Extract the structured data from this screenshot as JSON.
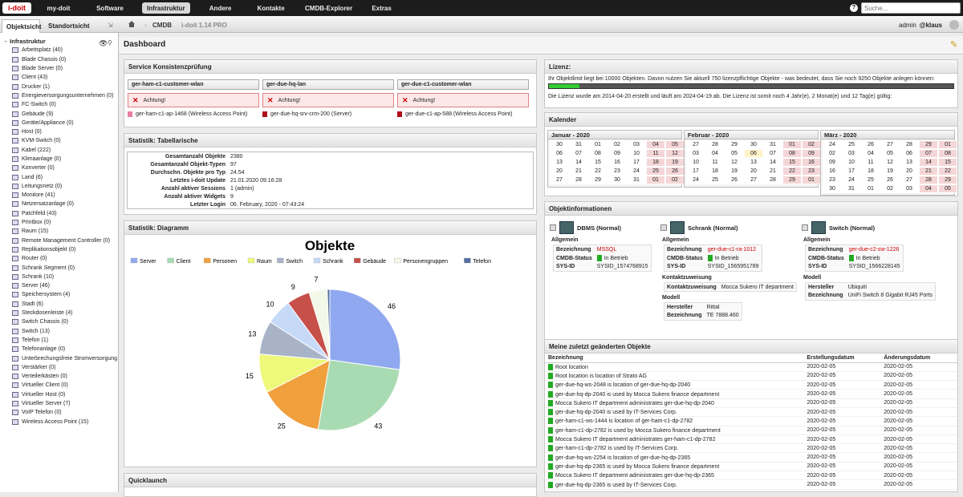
{
  "topbar": {
    "logo": "i-doit",
    "nav": [
      "my-doit",
      "Software",
      "Infrastruktur",
      "Andere",
      "Kontakte",
      "CMDB-Explorer",
      "Extras"
    ],
    "search_placeholder": "Suche..."
  },
  "tabs": {
    "obj": "Objektsicht",
    "loc": "Standortsicht"
  },
  "breadcrumb": {
    "cmdb": "CMDB",
    "version": "i-doit 1.14 PRO"
  },
  "user": {
    "name": "admin",
    "tenant": "@klaus"
  },
  "tree": {
    "root": "Infrastruktur",
    "items": [
      "Arbeitsplatz (40)",
      "Blade Chassis (0)",
      "Blade Server (0)",
      "Client (43)",
      "Drucker (1)",
      "Energieversorgungsunternehmen (0)",
      "FC-Switch (0)",
      "Gebäude (9)",
      "Geräte/Appliance (0)",
      "Host (0)",
      "KVM-Switch (0)",
      "Kabel (222)",
      "Klimaanlage (0)",
      "Konverter (0)",
      "Land (6)",
      "Leitungsnetz (0)",
      "Monitore (41)",
      "Netzersatzanlage (0)",
      "Patchfeld (43)",
      "Printbox (0)",
      "Raum (15)",
      "Remote Management Controller (0)",
      "Replikationsobjekt (0)",
      "Router (0)",
      "Schrank Segment (0)",
      "Schrank (10)",
      "Server (46)",
      "Speichersystem (4)",
      "Stadt (6)",
      "Steckdosenleiste (4)",
      "Switch Chassis (0)",
      "Switch (13)",
      "Telefon (1)",
      "Telefonanlage (0)",
      "Unterbrechungsfreie Stromversorgung",
      "Verstärker (0)",
      "Verteilerkästen (0)",
      "Virtueller Client (0)",
      "Virtueller Host (0)",
      "Virtueller Server (7)",
      "VoIP Telefon (0)",
      "Wireless Access Point (15)"
    ]
  },
  "dashboard": {
    "title": "Dashboard"
  },
  "consistency": {
    "title": "Service Konsistenzprüfung",
    "columns": [
      {
        "name": "ger-ham-c1-customer-wlan",
        "alert": "Achtung!",
        "device": "ger-ham-c1-ap-1468 (Wireless Access Point)",
        "color": "#e87fa0"
      },
      {
        "name": "ger-due-hq-lan",
        "alert": "Achtung!",
        "device": "ger-due-hq-srv-crm-200 (Server)",
        "color": "#b0101a"
      },
      {
        "name": "ger-due-c1-customer-wlan",
        "alert": "Achtung!",
        "device": "ger-due-c1-ap-588 (Wireless Access Point)",
        "color": "#b0101a"
      }
    ]
  },
  "stats": {
    "title": "Statistik: Tabellarische",
    "rows": [
      [
        "Gesamtanzahl Objekte",
        "2380"
      ],
      [
        "Gesamtanzahl Objekt-Typen",
        "97"
      ],
      [
        "Durchschn. Objekte pro Typ",
        "24.54"
      ],
      [
        "Letztes i-doit Update",
        "21.01.2020 09:16:28"
      ],
      [
        "Anzahl aktiver Sessions",
        "1 (admin)"
      ],
      [
        "Anzahl aktiver Widgets",
        "9"
      ],
      [
        "Letzter Login",
        "06. February, 2020 - 07:43:24"
      ]
    ]
  },
  "diagram": {
    "title": "Statistik: Diagramm"
  },
  "chart_data": {
    "type": "pie",
    "title": "Objekte",
    "legend_position": "top",
    "categories": [
      "Server",
      "Client",
      "Personen",
      "Raum",
      "Switch",
      "Schrank",
      "Gebäude",
      "Personengruppen",
      "Telefon"
    ],
    "values": [
      46,
      43,
      25,
      15,
      13,
      10,
      9,
      7,
      1
    ],
    "colors": [
      "#8fa8ef",
      "#a9dbb2",
      "#f0a03c",
      "#eef87a",
      "#a8b3c8",
      "#c6daf8",
      "#c7504a",
      "#f4f8e8",
      "#5470a0"
    ],
    "shown_labels": [
      "46",
      "43",
      "25",
      "15",
      "13",
      "10",
      "9",
      "7",
      ""
    ]
  },
  "quicklaunch": {
    "title": "Quicklaunch"
  },
  "license": {
    "title": "Lizenz:",
    "line1": "Ihr Objektlimit liegt bei 10000 Objekten. Davon nutzen Sie aktuell 750 lizenzpflichtige Objekte - was bedeutet, dass Sie noch 9250 Objekte anlegen können:",
    "used_fraction": 0.075,
    "line2": "Die Lizenz wurde am 2014-04-20 erstellt und läuft am 2024-04-19 ab. Die Lizenz ist somit noch 4 Jahr(e), 2 Monat(e) und 12 Tag(e) gültig:"
  },
  "calendar": {
    "title": "Kalender",
    "months": [
      {
        "name": "Januar - 2020",
        "days": [
          "30",
          "31",
          "01",
          "02",
          "03",
          "04",
          "05",
          "06",
          "07",
          "08",
          "09",
          "10",
          "11",
          "12",
          "13",
          "14",
          "15",
          "16",
          "17",
          "18",
          "19",
          "20",
          "21",
          "22",
          "23",
          "24",
          "25",
          "26",
          "27",
          "28",
          "29",
          "30",
          "31",
          "01",
          "02"
        ]
      },
      {
        "name": "Februar - 2020",
        "days": [
          "27",
          "28",
          "29",
          "30",
          "31",
          "01",
          "02",
          "03",
          "04",
          "05",
          "06",
          "07",
          "08",
          "09",
          "10",
          "11",
          "12",
          "13",
          "14",
          "15",
          "16",
          "17",
          "18",
          "19",
          "20",
          "21",
          "22",
          "23",
          "24",
          "25",
          "26",
          "27",
          "28",
          "29",
          "01"
        ]
      },
      {
        "name": "März - 2020",
        "days": [
          "24",
          "25",
          "26",
          "27",
          "28",
          "29",
          "01",
          "02",
          "03",
          "04",
          "05",
          "06",
          "07",
          "08",
          "09",
          "10",
          "11",
          "12",
          "13",
          "14",
          "15",
          "16",
          "17",
          "18",
          "19",
          "20",
          "21",
          "22",
          "23",
          "24",
          "25",
          "26",
          "27",
          "28",
          "29",
          "30",
          "31",
          "01",
          "02",
          "03",
          "04",
          "05"
        ]
      }
    ],
    "today": {
      "month": 1,
      "day": "06"
    }
  },
  "objinfo": {
    "title": "Objektinformationen",
    "cards": [
      {
        "title": "DBMS (Normal)",
        "section": "Allgemein",
        "rows": [
          [
            "Bezeichnung",
            "MSSQL"
          ],
          [
            "CMDB-Status",
            "In Betrieb"
          ],
          [
            "SYS-ID",
            "SYSID_1574768915"
          ]
        ]
      },
      {
        "title": "Schrank (Normal)",
        "section": "Allgemein",
        "rows": [
          [
            "Bezeichnung",
            "ger-due-c1-ra-1012"
          ],
          [
            "CMDB-Status",
            "In Betrieb"
          ],
          [
            "SYS-ID",
            "SYSID_1565951789"
          ]
        ],
        "section2": "Kontaktzuweisung",
        "rows2": [
          [
            "Kontaktzuweisung",
            "Mocca Sukero IT department"
          ]
        ],
        "section3": "Modell",
        "rows3": [
          [
            "Hersteller",
            "Rittal"
          ],
          [
            "Bezeichnung",
            "TE 7888.460"
          ]
        ]
      },
      {
        "title": "Switch (Normal)",
        "section": "Allgemein",
        "rows": [
          [
            "Bezeichnung",
            "ger-due-c2-sw-1226"
          ],
          [
            "CMDB-Status",
            "In Betrieb"
          ],
          [
            "SYS-ID",
            "SYSID_1566228145"
          ]
        ],
        "section3": "Modell",
        "rows3": [
          [
            "Hersteller",
            "Ubiquiti"
          ],
          [
            "Bezeichnung",
            "UniFi Switch 8 Gigabit RJ45 Ports"
          ]
        ]
      }
    ]
  },
  "recent": {
    "title": "Meine zuletzt geänderten Objekte",
    "headers": [
      "Bezeichnung",
      "Erstellungsdatum",
      "Änderungsdatum"
    ],
    "rows": [
      [
        "Root location",
        "2020-02-05",
        "2020-02-05"
      ],
      [
        "Root location is location of Strato AG",
        "2020-02-05",
        "2020-02-05"
      ],
      [
        "ger-due-hq-ws-2048 is location of ger-due-hq-dp-2040",
        "2020-02-05",
        "2020-02-05"
      ],
      [
        "ger-due-hq-dp-2040 is used by Mocca Sukero finance department",
        "2020-02-05",
        "2020-02-05"
      ],
      [
        "Mocca Sukero IT department administrates ger-due-hq-dp-2040",
        "2020-02-05",
        "2020-02-05"
      ],
      [
        "ger-due-hq-dp-2040 is used by IT-Services Corp.",
        "2020-02-05",
        "2020-02-05"
      ],
      [
        "ger-ham-c1-ws-1444 is location of ger-ham-c1-dp-2782",
        "2020-02-05",
        "2020-02-05"
      ],
      [
        "ger-ham-c1-dp-2782 is used by Mocca Sukero finance department",
        "2020-02-05",
        "2020-02-05"
      ],
      [
        "Mocca Sukero IT department administrates ger-ham-c1-dp-2782",
        "2020-02-05",
        "2020-02-05"
      ],
      [
        "ger-ham-c1-dp-2782 is used by IT-Services Corp.",
        "2020-02-05",
        "2020-02-05"
      ],
      [
        "ger-due-hq-ws-2254 is location of ger-due-hq-dp-2365",
        "2020-02-05",
        "2020-02-05"
      ],
      [
        "ger-due-hq-dp-2365 is used by Mocca Sukero finance department",
        "2020-02-05",
        "2020-02-05"
      ],
      [
        "Mocca Sukero IT department administrates ger-due-hq-dp-2365",
        "2020-02-05",
        "2020-02-05"
      ],
      [
        "ger-due-hq-dp-2365 is used by IT-Services Corp.",
        "2020-02-05",
        "2020-02-05"
      ]
    ]
  }
}
